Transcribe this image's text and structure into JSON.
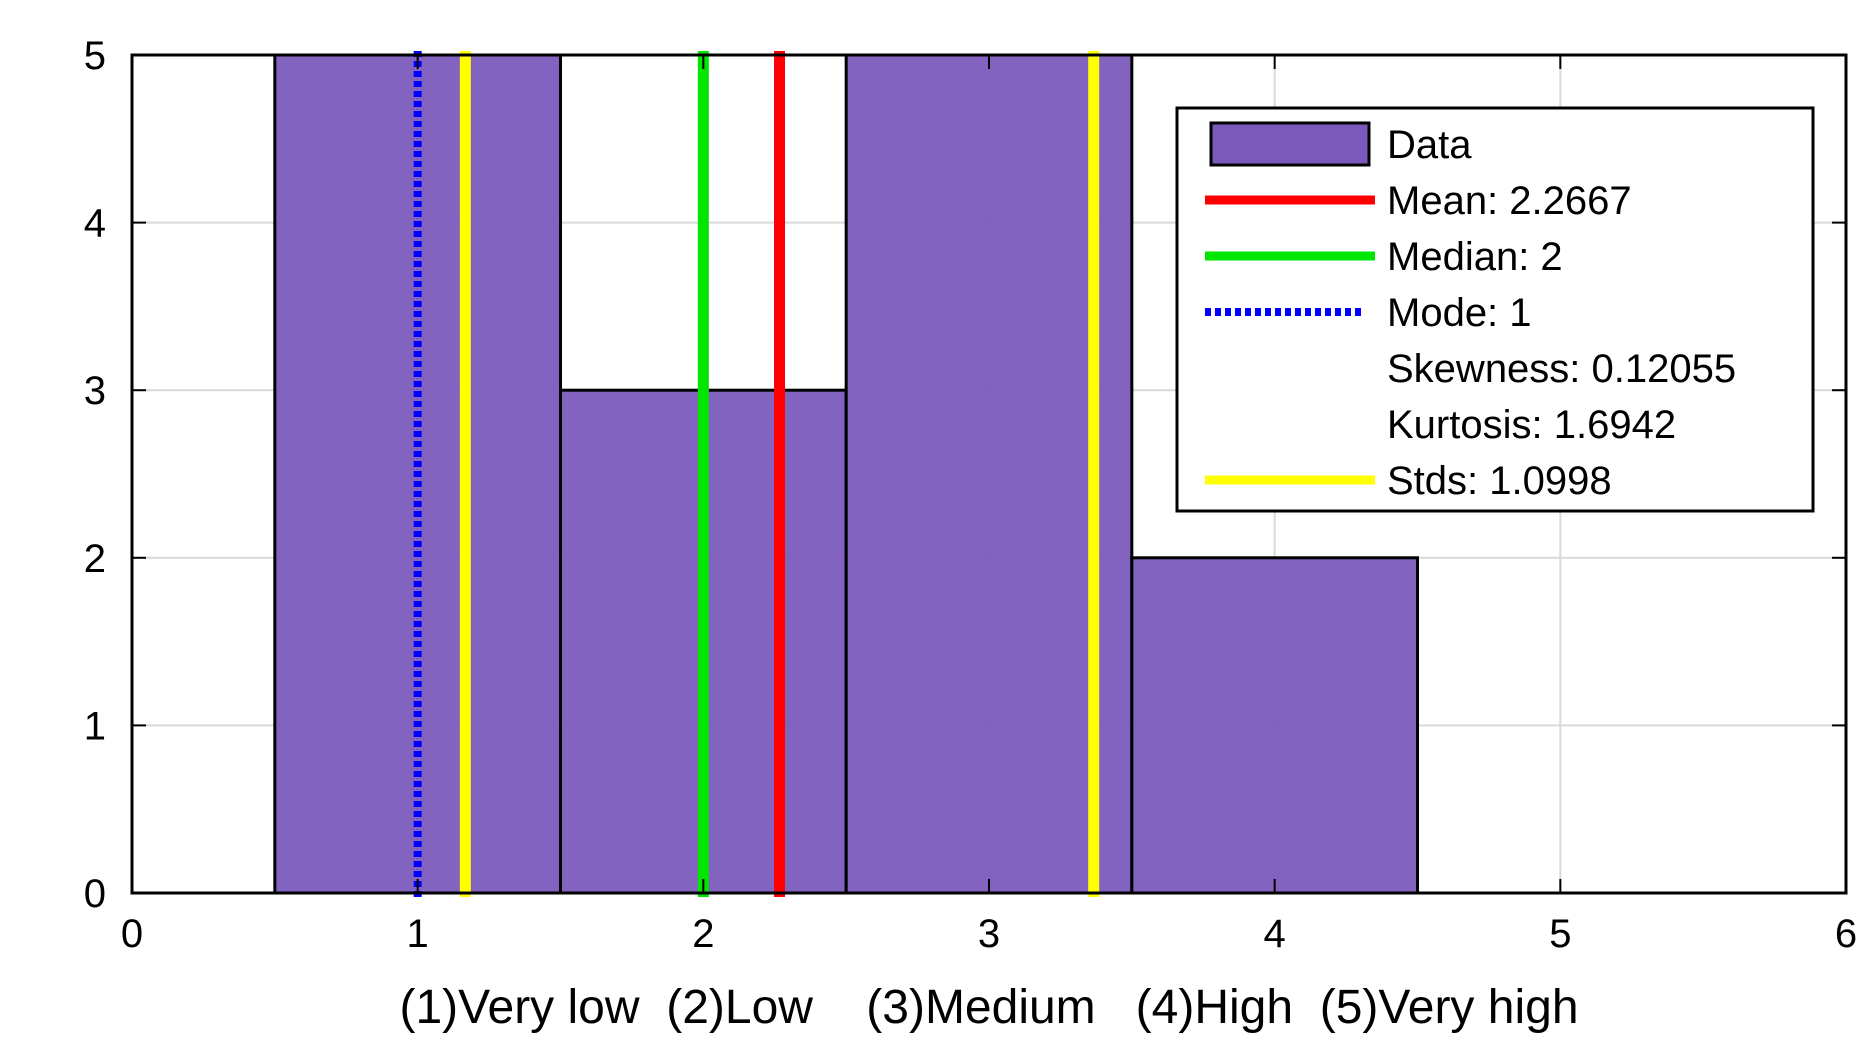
{
  "chart_data": {
    "type": "bar",
    "title": "",
    "xlabel": "(1)Very low  (2)Low    (3)Medium   (4)High  (5)Very high",
    "ylabel": "",
    "xlim": [
      0,
      6
    ],
    "ylim": [
      0,
      5
    ],
    "x_ticks": [
      0,
      1,
      2,
      3,
      4,
      5,
      6
    ],
    "y_ticks": [
      0,
      1,
      2,
      3,
      4,
      5
    ],
    "grid": true,
    "legend_position": "top-right",
    "bins": [
      {
        "x": 1,
        "value": 5
      },
      {
        "x": 2,
        "value": 3
      },
      {
        "x": 3,
        "value": 5
      },
      {
        "x": 4,
        "value": 2
      }
    ],
    "bin_width": 1,
    "bar_color": "#7b59bc",
    "reference_lines": [
      {
        "name": "Mean",
        "x": 2.2667,
        "color": "#ff0000",
        "style": "solid"
      },
      {
        "name": "Median",
        "x": 2,
        "color": "#00e600",
        "style": "solid"
      },
      {
        "name": "Mode",
        "x": 1,
        "color": "#0000ff",
        "style": "dotted"
      },
      {
        "name": "Std low",
        "x": 1.1669,
        "color": "#ffff00",
        "style": "solid"
      },
      {
        "name": "Std high",
        "x": 3.3665,
        "color": "#ffff00",
        "style": "solid"
      }
    ],
    "legend": [
      {
        "label": "Data",
        "kind": "patch",
        "color": "#7b59bc"
      },
      {
        "label": "Mean: 2.2667",
        "kind": "line",
        "color": "#ff0000",
        "style": "solid"
      },
      {
        "label": "Median: 2",
        "kind": "line",
        "color": "#00e600",
        "style": "solid"
      },
      {
        "label": "Mode: 1",
        "kind": "line",
        "color": "#0000ff",
        "style": "dotted"
      },
      {
        "label": "Skewness: 0.12055",
        "kind": "none"
      },
      {
        "label": "Kurtosis: 1.6942",
        "kind": "none"
      },
      {
        "label": "Stds: 1.0998",
        "kind": "line",
        "color": "#ffff00",
        "style": "solid"
      }
    ]
  }
}
